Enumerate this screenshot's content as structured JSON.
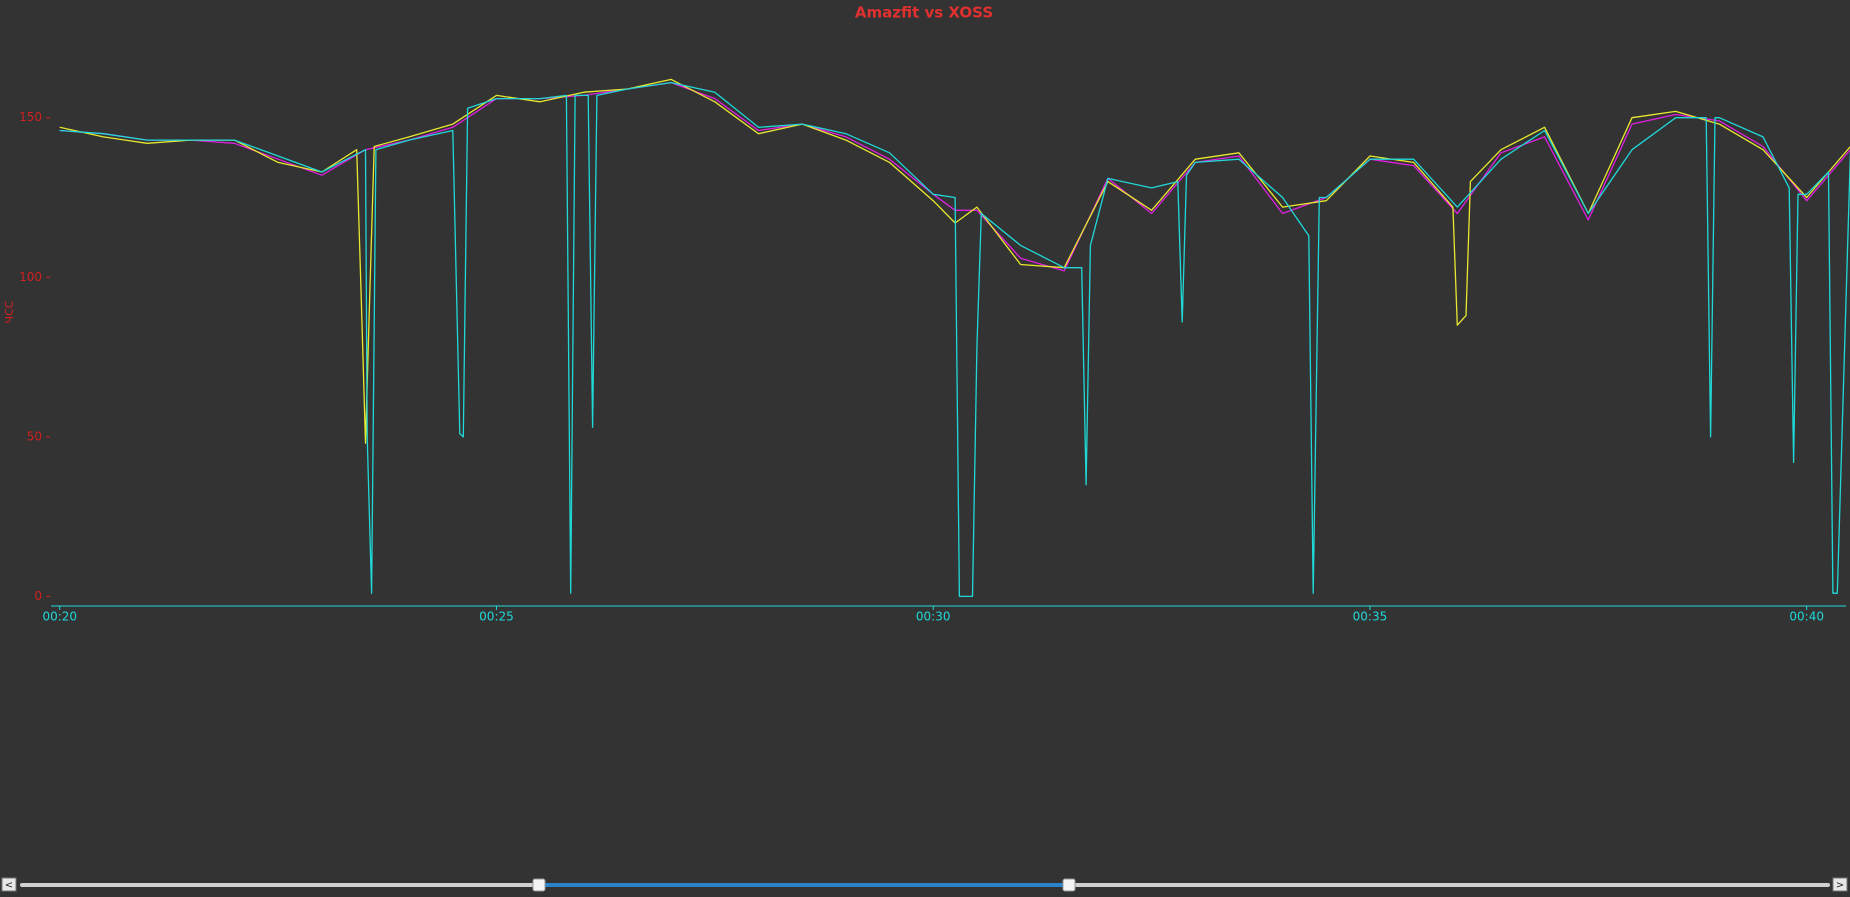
{
  "chart_data": {
    "type": "line",
    "title": "Amazfit vs XOSS",
    "y_label": "ЧСС",
    "xlim": [
      19.9,
      40.45
    ],
    "ylim": [
      -3,
      180
    ],
    "xticks": [
      {
        "value": 20,
        "label": "00:20"
      },
      {
        "value": 25,
        "label": "00:25"
      },
      {
        "value": 30,
        "label": "00:30"
      },
      {
        "value": 35,
        "label": "00:35"
      },
      {
        "value": 40,
        "label": "00:40"
      }
    ],
    "yticks": [
      0,
      50,
      100,
      150
    ],
    "series": [
      {
        "color": "#e020e0",
        "x": [
          20,
          20.5,
          21,
          21.5,
          22,
          22.5,
          23,
          23.5,
          24,
          24.5,
          25,
          25.5,
          26,
          26.5,
          27,
          27.5,
          28,
          28.5,
          29,
          29.5,
          30,
          30.25,
          30.5,
          31,
          31.5,
          32,
          32.5,
          33,
          33.5,
          34,
          34.5,
          35,
          35.5,
          36,
          36.5,
          37,
          37.5,
          38,
          38.5,
          39,
          39.5,
          40,
          40.5
        ],
        "values": [
          146,
          145,
          143,
          143,
          142,
          137,
          132,
          140,
          143,
          147,
          156,
          156,
          157,
          159,
          161,
          156,
          146,
          148,
          144,
          137,
          126,
          121,
          121,
          106,
          102,
          131,
          120,
          136,
          138,
          120,
          125,
          137,
          135,
          120,
          139,
          144,
          118,
          148,
          151,
          149,
          141,
          124,
          140
        ]
      },
      {
        "color": "#e8e830",
        "x": [
          20,
          20.5,
          21,
          21.5,
          22,
          22.5,
          23,
          23.4,
          23.45,
          23.5,
          23.55,
          23.6,
          24,
          24.5,
          25,
          25.5,
          26,
          26.5,
          27,
          27.5,
          28,
          28.5,
          29,
          29.5,
          30,
          30.25,
          30.5,
          31,
          31.5,
          32,
          32.5,
          33,
          33.5,
          34,
          34.5,
          35,
          35.5,
          35.95,
          36.0,
          36.1,
          36.15,
          36.5,
          37,
          37.5,
          38,
          38.5,
          39,
          39.5,
          40,
          40.5
        ],
        "values": [
          147,
          144,
          142,
          143,
          143,
          136,
          133,
          140,
          95,
          48,
          95,
          141,
          144,
          148,
          157,
          155,
          158,
          159,
          162,
          155,
          145,
          148,
          143,
          136,
          124,
          117,
          122,
          104,
          103,
          130,
          121,
          137,
          139,
          122,
          124,
          138,
          136,
          122,
          85,
          88,
          130,
          140,
          147,
          120,
          150,
          152,
          148,
          140,
          125,
          141
        ]
      },
      {
        "color": "#20d8d8",
        "x": [
          20,
          20.5,
          21,
          21.5,
          22,
          22.5,
          23,
          23.5,
          23.52,
          23.57,
          23.62,
          24,
          24.5,
          24.58,
          24.62,
          24.67,
          25,
          25.5,
          25.8,
          25.85,
          25.9,
          26.05,
          26.1,
          26.15,
          26.5,
          27,
          27.5,
          28,
          28.5,
          29,
          29.5,
          30,
          30.25,
          30.3,
          30.45,
          30.5,
          30.55,
          31,
          31.5,
          31.7,
          31.75,
          31.8,
          32,
          32.5,
          32.8,
          32.85,
          32.9,
          33,
          33.5,
          34,
          34.3,
          34.35,
          34.42,
          34.5,
          35,
          35.5,
          36,
          36.5,
          37,
          37.5,
          38,
          38.5,
          38.85,
          38.9,
          38.95,
          39,
          39.5,
          39.8,
          39.85,
          39.9,
          40,
          40.25,
          40.3,
          40.35,
          40.5
        ],
        "values": [
          146,
          145,
          143,
          143,
          143,
          138,
          133,
          140,
          50,
          1,
          140,
          143,
          146,
          51,
          50,
          153,
          156,
          156,
          157,
          1,
          157,
          157,
          53,
          157,
          159,
          161,
          158,
          147,
          148,
          145,
          139,
          126,
          125,
          0,
          0,
          78,
          120,
          110,
          103,
          103,
          35,
          110,
          131,
          128,
          130,
          86,
          132,
          136,
          137,
          125,
          113,
          1,
          125,
          125,
          137,
          137,
          122,
          137,
          146,
          120,
          140,
          150,
          150,
          50,
          150,
          150,
          144,
          128,
          42,
          126,
          126,
          133,
          1,
          1,
          139
        ]
      }
    ]
  },
  "slider": {
    "prev": "<",
    "next": ">"
  }
}
